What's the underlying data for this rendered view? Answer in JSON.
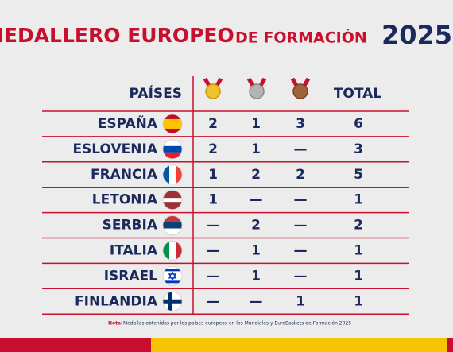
{
  "header": {
    "title_main": "MEDALLERO EUROPEO",
    "title_sub": "DE FORMACIÓN",
    "title_year": "2025"
  },
  "table": {
    "columns": {
      "country": "PAÍSES",
      "total": "TOTAL"
    },
    "rows": [
      {
        "country": "ESPAÑA",
        "gold": 2,
        "silver": 1,
        "bronze": 3,
        "total": 6
      },
      {
        "country": "ESLOVENIA",
        "gold": 2,
        "silver": 1,
        "bronze": "—",
        "total": 3
      },
      {
        "country": "FRANCIA",
        "gold": 1,
        "silver": 2,
        "bronze": 2,
        "total": 5
      },
      {
        "country": "LETONIA",
        "gold": 1,
        "silver": "—",
        "bronze": "—",
        "total": 1
      },
      {
        "country": "SERBIA",
        "gold": "—",
        "silver": 2,
        "bronze": "—",
        "total": 2
      },
      {
        "country": "ITALIA",
        "gold": "—",
        "silver": 1,
        "bronze": "—",
        "total": 1
      },
      {
        "country": "ISRAEL",
        "gold": "—",
        "silver": 1,
        "bronze": "—",
        "total": 1
      },
      {
        "country": "FINLANDIA",
        "gold": "—",
        "silver": "—",
        "bronze": 1,
        "total": 1
      }
    ]
  },
  "note": {
    "label": "Nota:",
    "text": "Medallas obtenidas por los países europeos en los Mundiales y EuroBaskets de Formación 2025"
  }
}
